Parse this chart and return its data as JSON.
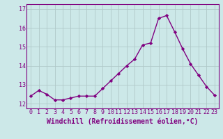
{
  "x": [
    0,
    1,
    2,
    3,
    4,
    5,
    6,
    7,
    8,
    9,
    10,
    11,
    12,
    13,
    14,
    15,
    16,
    17,
    18,
    19,
    20,
    21,
    22,
    23
  ],
  "y": [
    12.4,
    12.7,
    12.5,
    12.2,
    12.2,
    12.3,
    12.4,
    12.4,
    12.4,
    12.8,
    13.2,
    13.6,
    14.0,
    14.35,
    15.1,
    15.2,
    16.5,
    16.65,
    15.8,
    14.9,
    14.1,
    13.5,
    12.9,
    12.45
  ],
  "line_color": "#800080",
  "marker": "D",
  "marker_size": 2.2,
  "bg_color": "#cce8e8",
  "grid_color": "#b0c8c8",
  "xlabel": "Windchill (Refroidissement éolien,°C)",
  "ylim": [
    11.75,
    17.25
  ],
  "yticks": [
    12,
    13,
    14,
    15,
    16,
    17
  ],
  "xticks": [
    0,
    1,
    2,
    3,
    4,
    5,
    6,
    7,
    8,
    9,
    10,
    11,
    12,
    13,
    14,
    15,
    16,
    17,
    18,
    19,
    20,
    21,
    22,
    23
  ],
  "xtick_labels": [
    "0",
    "1",
    "2",
    "3",
    "4",
    "5",
    "6",
    "7",
    "8",
    "9",
    "10",
    "11",
    "12",
    "13",
    "14",
    "15",
    "16",
    "17",
    "18",
    "19",
    "20",
    "21",
    "22",
    "23"
  ],
  "tick_color": "#800080",
  "label_color": "#800080",
  "tick_fontsize": 6.0,
  "xlabel_fontsize": 7.0,
  "linewidth": 1.0
}
